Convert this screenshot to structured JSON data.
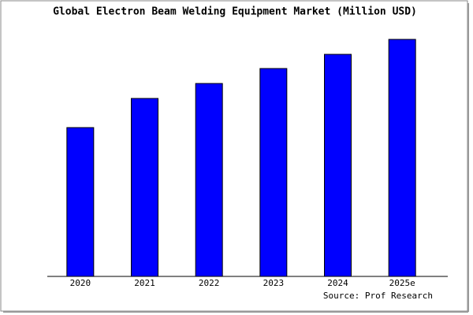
{
  "chart_data": {
    "type": "bar",
    "title": "Global Electron Beam Welding Equipment Market (Million USD)",
    "categories": [
      "2020",
      "2021",
      "2022",
      "2023",
      "2024",
      "2025e"
    ],
    "values": [
      189,
      226,
      245,
      264,
      282,
      301
    ],
    "color": "#0000ff",
    "ylim": [
      0,
      303
    ],
    "source": "Source: Prof Research"
  }
}
